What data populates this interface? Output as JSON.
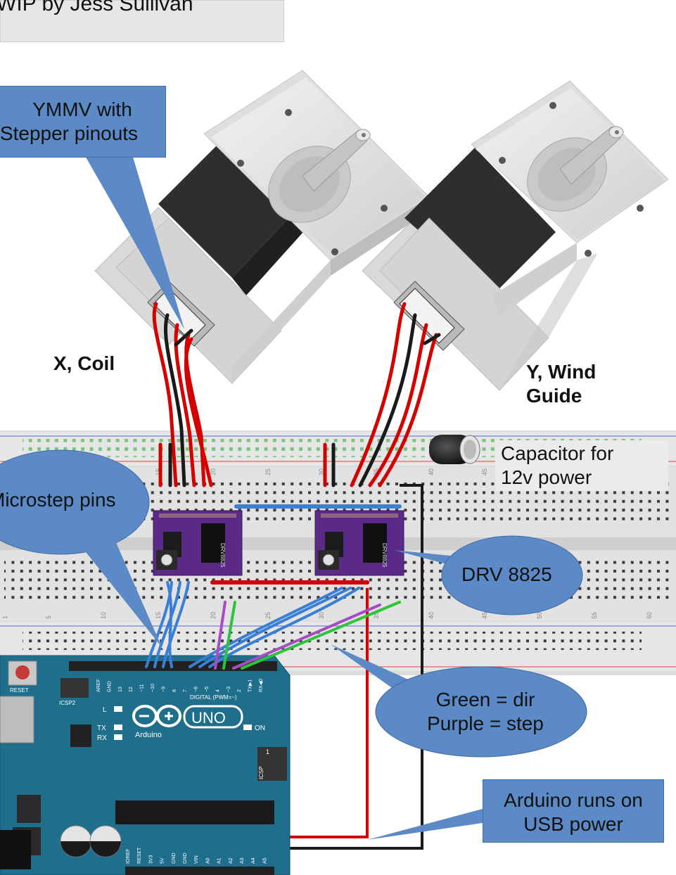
{
  "title": "WIP by Jess Sullivan",
  "callouts": {
    "ymmv_line1": "YMMV with",
    "ymmv_line2": "Stepper pinouts",
    "microstep": "Microstep pins",
    "drv": "DRV 8825",
    "green_dir": "Green = dir",
    "purple_step": "Purple = step",
    "usb_line1": "Arduino runs on",
    "usb_line2": "USB power"
  },
  "labels": {
    "x_coil": "X, Coil",
    "y_line1": "Y, Wind",
    "y_line2": "Guide",
    "cap_line1": "Capacitor for",
    "cap_line2": "12v power"
  },
  "arduino": {
    "reset": "RESET",
    "icsp2": "ICSP2",
    "l": "L",
    "tx": "TX",
    "rx": "RX",
    "on": "ON",
    "uno": "UNO",
    "brand": "Arduino",
    "digital": "DIGITAL (PWM=~)",
    "icsp": "ICSP",
    "one": "1",
    "top_pins": [
      "AREF",
      "GND",
      "13",
      "12",
      "~11",
      "~10",
      "~9",
      "8",
      "7",
      "~6",
      "~5",
      "4",
      "~3",
      "2",
      "TX▶1",
      "RX◀0"
    ],
    "bottom_pins": [
      "IOREF",
      "RESET",
      "3V3",
      "5V",
      "GND",
      "GND",
      "VIN",
      "A0",
      "A1",
      "A2",
      "A3",
      "A4",
      "A5"
    ]
  },
  "driver_chip": "DRV8825",
  "breadboard_numbers": [
    "1",
    "5",
    "10",
    "15",
    "20",
    "25",
    "30",
    "35",
    "40",
    "45",
    "50",
    "55",
    "60"
  ],
  "colors": {
    "callout": "#5b8ac6",
    "board": "#1f6e8c",
    "driver": "#5b2a86",
    "wire_red": "#d40000",
    "wire_black": "#1a1a1a",
    "wire_blue": "#3a7fd5",
    "wire_green": "#2ec43a",
    "wire_purple": "#a64cc4"
  }
}
